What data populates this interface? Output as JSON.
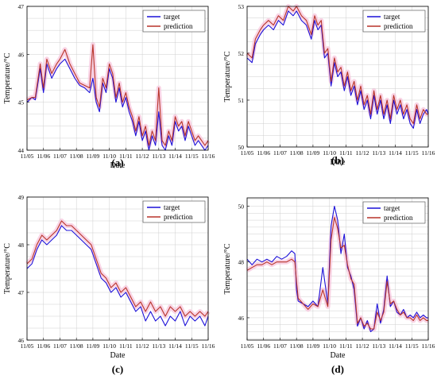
{
  "legend": {
    "target": "target",
    "prediction": "prediction"
  },
  "colors": {
    "target": "#1c10d8",
    "prediction": "#b8342a",
    "band": "#f6c2da",
    "grid": "#cfcfcf"
  },
  "chart_data": [
    {
      "type": "line",
      "panel_label": "(a)",
      "xlabel": "Date",
      "ylabel": "Temperature/°C",
      "x_ticks": [
        "11/05",
        "11/06",
        "11/07",
        "11/08",
        "11/09",
        "11/10",
        "11/11",
        "11/12",
        "11/13",
        "11/14",
        "11/15",
        "11/16"
      ],
      "x_range": [
        0,
        11
      ],
      "ylim": [
        44,
        47
      ],
      "y_ticks": [
        "44",
        "45",
        "46",
        "47"
      ],
      "y_tick_values": [
        44,
        45,
        46,
        47
      ],
      "grid": true,
      "legend_position": "top-right",
      "series": [
        {
          "name": "target",
          "x": [
            0,
            0.3,
            0.5,
            0.8,
            1.0,
            1.2,
            1.5,
            1.8,
            2.0,
            2.3,
            2.6,
            2.9,
            3.2,
            3.5,
            3.8,
            4.0,
            4.2,
            4.4,
            4.6,
            4.8,
            5.0,
            5.2,
            5.4,
            5.6,
            5.8,
            6.0,
            6.2,
            6.4,
            6.6,
            6.8,
            7.0,
            7.2,
            7.4,
            7.6,
            7.8,
            8.0,
            8.2,
            8.4,
            8.6,
            8.8,
            9.0,
            9.2,
            9.4,
            9.6,
            9.8,
            10.0,
            10.2,
            10.4,
            10.6,
            10.8,
            11.0
          ],
          "y": [
            45.0,
            45.1,
            45.05,
            45.7,
            45.2,
            45.8,
            45.5,
            45.7,
            45.8,
            45.9,
            45.7,
            45.5,
            45.35,
            45.3,
            45.2,
            45.5,
            45.0,
            44.8,
            45.4,
            45.2,
            45.7,
            45.5,
            45.0,
            45.3,
            44.9,
            45.1,
            44.8,
            44.6,
            44.3,
            44.6,
            44.2,
            44.4,
            44.0,
            44.3,
            44.1,
            44.8,
            44.1,
            44.0,
            44.3,
            44.1,
            44.6,
            44.4,
            44.5,
            44.2,
            44.5,
            44.3,
            44.1,
            44.2,
            44.1,
            44.0,
            44.1
          ]
        },
        {
          "name": "prediction",
          "x": [
            0,
            0.3,
            0.5,
            0.8,
            1.0,
            1.2,
            1.5,
            1.8,
            2.0,
            2.3,
            2.6,
            2.9,
            3.2,
            3.5,
            3.8,
            4.0,
            4.2,
            4.4,
            4.6,
            4.8,
            5.0,
            5.2,
            5.4,
            5.6,
            5.8,
            6.0,
            6.2,
            6.4,
            6.6,
            6.8,
            7.0,
            7.2,
            7.4,
            7.6,
            7.8,
            8.0,
            8.2,
            8.4,
            8.6,
            8.8,
            9.0,
            9.2,
            9.4,
            9.6,
            9.8,
            10.0,
            10.2,
            10.4,
            10.6,
            10.8,
            11.0
          ],
          "y": [
            45.05,
            45.1,
            45.1,
            45.8,
            45.3,
            45.9,
            45.6,
            45.8,
            45.9,
            46.1,
            45.8,
            45.6,
            45.4,
            45.35,
            45.3,
            46.2,
            45.1,
            44.9,
            45.5,
            45.3,
            45.8,
            45.6,
            45.1,
            45.4,
            45.0,
            45.2,
            44.9,
            44.7,
            44.4,
            44.7,
            44.3,
            44.5,
            44.1,
            44.4,
            44.2,
            45.3,
            44.2,
            44.1,
            44.4,
            44.2,
            44.7,
            44.5,
            44.6,
            44.3,
            44.6,
            44.4,
            44.2,
            44.3,
            44.2,
            44.1,
            44.2
          ]
        }
      ]
    },
    {
      "type": "line",
      "panel_label": "(b)",
      "xlabel": "Date",
      "ylabel": "Temperature/°C",
      "x_ticks": [
        "11/05",
        "11/06",
        "11/07",
        "11/08",
        "11/09",
        "11/10",
        "11/11",
        "11/12",
        "11/13",
        "11/14",
        "11/15",
        "11/16"
      ],
      "x_range": [
        0,
        11
      ],
      "ylim": [
        50,
        53
      ],
      "y_ticks": [
        "50",
        "51",
        "52",
        "53"
      ],
      "y_tick_values": [
        50,
        51,
        52,
        53
      ],
      "grid": true,
      "legend_position": "top-right",
      "series": [
        {
          "name": "target",
          "x": [
            0,
            0.3,
            0.5,
            0.8,
            1.0,
            1.3,
            1.6,
            1.9,
            2.2,
            2.5,
            2.8,
            3.0,
            3.3,
            3.6,
            3.9,
            4.1,
            4.3,
            4.5,
            4.7,
            4.9,
            5.1,
            5.3,
            5.5,
            5.7,
            5.9,
            6.1,
            6.3,
            6.5,
            6.7,
            6.9,
            7.1,
            7.3,
            7.5,
            7.7,
            7.9,
            8.1,
            8.3,
            8.5,
            8.7,
            8.9,
            9.1,
            9.3,
            9.5,
            9.7,
            9.9,
            10.1,
            10.3,
            10.5,
            10.7,
            10.9,
            11.0
          ],
          "y": [
            51.9,
            51.8,
            52.2,
            52.4,
            52.5,
            52.6,
            52.5,
            52.7,
            52.6,
            52.9,
            52.8,
            52.9,
            52.7,
            52.6,
            52.3,
            52.7,
            52.5,
            52.6,
            51.9,
            52.0,
            51.3,
            51.8,
            51.5,
            51.6,
            51.2,
            51.5,
            51.1,
            51.3,
            50.9,
            51.2,
            50.8,
            51.0,
            50.6,
            51.1,
            50.7,
            51.0,
            50.6,
            50.9,
            50.5,
            51.0,
            50.7,
            50.9,
            50.6,
            50.8,
            50.5,
            50.4,
            50.8,
            50.5,
            50.7,
            50.8,
            50.7
          ]
        },
        {
          "name": "prediction",
          "x": [
            0,
            0.3,
            0.5,
            0.8,
            1.0,
            1.3,
            1.6,
            1.9,
            2.2,
            2.5,
            2.8,
            3.0,
            3.3,
            3.6,
            3.9,
            4.1,
            4.3,
            4.5,
            4.7,
            4.9,
            5.1,
            5.3,
            5.5,
            5.7,
            5.9,
            6.1,
            6.3,
            6.5,
            6.7,
            6.9,
            7.1,
            7.3,
            7.5,
            7.7,
            7.9,
            8.1,
            8.3,
            8.5,
            8.7,
            8.9,
            9.1,
            9.3,
            9.5,
            9.7,
            9.9,
            10.1,
            10.3,
            10.5,
            10.7,
            10.9,
            11.0
          ],
          "y": [
            52.0,
            51.9,
            52.3,
            52.5,
            52.6,
            52.7,
            52.6,
            52.8,
            52.7,
            53.0,
            52.9,
            53.0,
            52.8,
            52.7,
            52.4,
            52.8,
            52.6,
            52.7,
            52.0,
            52.1,
            51.4,
            51.9,
            51.6,
            51.7,
            51.3,
            51.6,
            51.2,
            51.4,
            51.0,
            51.3,
            50.9,
            51.1,
            50.7,
            51.2,
            50.8,
            51.1,
            50.7,
            51.0,
            50.6,
            51.1,
            50.8,
            51.0,
            50.7,
            50.9,
            50.6,
            50.5,
            50.9,
            50.6,
            50.8,
            50.7,
            50.7
          ]
        }
      ]
    },
    {
      "type": "line",
      "panel_label": "(c)",
      "xlabel": "Date",
      "ylabel": "Temperature/°C",
      "x_ticks": [
        "11/05",
        "11/06",
        "11/07",
        "11/08",
        "11/09",
        "11/10",
        "11/11",
        "11/12",
        "11/13",
        "11/14",
        "11/15",
        "11/16"
      ],
      "x_range": [
        0,
        11
      ],
      "ylim": [
        46,
        49
      ],
      "y_ticks": [
        "46",
        "47",
        "48",
        "49"
      ],
      "y_tick_values": [
        46,
        47,
        48,
        49
      ],
      "grid": true,
      "legend_position": "top-right",
      "series": [
        {
          "name": "target",
          "x": [
            0,
            0.3,
            0.6,
            0.9,
            1.2,
            1.5,
            1.8,
            2.1,
            2.4,
            2.7,
            3.0,
            3.3,
            3.6,
            3.9,
            4.2,
            4.5,
            4.8,
            5.1,
            5.4,
            5.7,
            6.0,
            6.3,
            6.6,
            6.9,
            7.2,
            7.5,
            7.8,
            8.1,
            8.4,
            8.7,
            9.0,
            9.3,
            9.6,
            9.9,
            10.2,
            10.5,
            10.8,
            11.0
          ],
          "y": [
            47.5,
            47.6,
            47.9,
            48.1,
            48.0,
            48.1,
            48.2,
            48.4,
            48.3,
            48.3,
            48.2,
            48.1,
            48.0,
            47.9,
            47.6,
            47.3,
            47.2,
            47.0,
            47.1,
            46.9,
            47.0,
            46.8,
            46.6,
            46.7,
            46.4,
            46.6,
            46.4,
            46.5,
            46.3,
            46.5,
            46.4,
            46.6,
            46.3,
            46.5,
            46.4,
            46.5,
            46.3,
            46.5
          ]
        },
        {
          "name": "prediction",
          "x": [
            0,
            0.3,
            0.6,
            0.9,
            1.2,
            1.5,
            1.8,
            2.1,
            2.4,
            2.7,
            3.0,
            3.3,
            3.6,
            3.9,
            4.2,
            4.5,
            4.8,
            5.1,
            5.4,
            5.7,
            6.0,
            6.3,
            6.6,
            6.9,
            7.2,
            7.5,
            7.8,
            8.1,
            8.4,
            8.7,
            9.0,
            9.3,
            9.6,
            9.9,
            10.2,
            10.5,
            10.8,
            11.0
          ],
          "y": [
            47.6,
            47.7,
            48.0,
            48.2,
            48.1,
            48.2,
            48.3,
            48.5,
            48.4,
            48.4,
            48.3,
            48.2,
            48.1,
            48.0,
            47.7,
            47.4,
            47.3,
            47.1,
            47.2,
            47.0,
            47.1,
            46.9,
            46.7,
            46.8,
            46.6,
            46.8,
            46.6,
            46.7,
            46.5,
            46.7,
            46.6,
            46.7,
            46.5,
            46.6,
            46.5,
            46.6,
            46.5,
            46.6
          ]
        }
      ]
    },
    {
      "type": "line",
      "panel_label": "(d)",
      "xlabel": "Date",
      "ylabel": "Temperature/°C",
      "x_ticks": [
        "11/05",
        "11/06",
        "11/07",
        "11/08",
        "11/09",
        "11/10",
        "11/11",
        "11/12",
        "11/13",
        "11/14",
        "11/15",
        "11/16"
      ],
      "x_range": [
        0,
        11
      ],
      "ylim": [
        45.2,
        50.3
      ],
      "y_ticks": [
        "46",
        "48",
        "50"
      ],
      "y_tick_values": [
        46,
        48,
        50
      ],
      "grid": true,
      "legend_position": "top-right",
      "series": [
        {
          "name": "target",
          "x": [
            0,
            0.3,
            0.6,
            0.9,
            1.2,
            1.5,
            1.8,
            2.1,
            2.4,
            2.7,
            2.9,
            3.0,
            3.1,
            3.4,
            3.7,
            4.0,
            4.3,
            4.6,
            4.9,
            5.1,
            5.3,
            5.5,
            5.7,
            5.9,
            6.1,
            6.3,
            6.5,
            6.7,
            6.9,
            7.1,
            7.3,
            7.5,
            7.7,
            7.9,
            8.1,
            8.3,
            8.5,
            8.7,
            8.9,
            9.1,
            9.3,
            9.5,
            9.7,
            9.9,
            10.1,
            10.3,
            10.5,
            10.7,
            10.9,
            11.0
          ],
          "y": [
            48.1,
            47.9,
            48.1,
            48.0,
            48.1,
            48.0,
            48.2,
            48.1,
            48.2,
            48.4,
            48.3,
            47.0,
            46.6,
            46.5,
            46.4,
            46.6,
            46.4,
            47.8,
            46.5,
            49.3,
            50.0,
            49.5,
            48.3,
            49.0,
            47.8,
            47.5,
            47.0,
            45.7,
            46.0,
            45.6,
            45.9,
            45.5,
            45.6,
            46.5,
            45.8,
            46.3,
            47.5,
            46.4,
            46.6,
            46.2,
            46.1,
            46.3,
            46.0,
            46.1,
            46.0,
            46.2,
            46.0,
            46.1,
            46.0,
            46.0
          ]
        },
        {
          "name": "prediction",
          "x": [
            0,
            0.3,
            0.6,
            0.9,
            1.2,
            1.5,
            1.8,
            2.1,
            2.4,
            2.7,
            2.9,
            3.0,
            3.1,
            3.4,
            3.7,
            4.0,
            4.3,
            4.6,
            4.9,
            5.1,
            5.3,
            5.5,
            5.7,
            5.9,
            6.1,
            6.3,
            6.5,
            6.7,
            6.9,
            7.1,
            7.3,
            7.5,
            7.7,
            7.9,
            8.1,
            8.3,
            8.5,
            8.7,
            8.9,
            9.1,
            9.3,
            9.5,
            9.7,
            9.9,
            10.1,
            10.3,
            10.5,
            10.7,
            10.9,
            11.0
          ],
          "y": [
            47.7,
            47.8,
            47.9,
            47.9,
            48.0,
            47.9,
            48.0,
            48.0,
            48.0,
            48.1,
            48.0,
            47.3,
            46.7,
            46.5,
            46.3,
            46.5,
            46.4,
            47.0,
            46.4,
            48.8,
            49.6,
            49.2,
            48.5,
            48.6,
            47.9,
            47.4,
            47.2,
            45.8,
            46.0,
            45.7,
            45.8,
            45.6,
            45.6,
            46.2,
            45.9,
            46.2,
            47.3,
            46.5,
            46.6,
            46.3,
            46.1,
            46.2,
            46.0,
            46.0,
            45.9,
            46.1,
            45.9,
            46.0,
            45.9,
            45.9
          ]
        }
      ]
    }
  ]
}
